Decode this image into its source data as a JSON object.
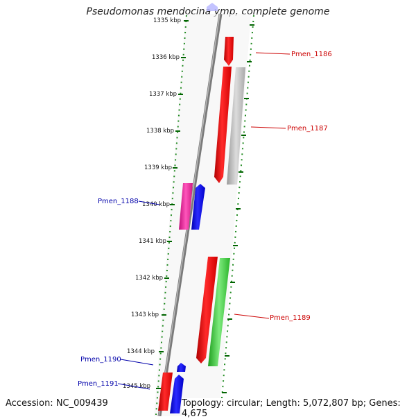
{
  "title": "Pseudomonas mendocina ymp, complete genome",
  "accession": "Accession: NC_009439",
  "topology": "Topology: circular; Length: 5,072,807 bp; Genes: 4,675",
  "ticks": [
    "1335 kbp",
    "1336 kbp",
    "1337 kbp",
    "1338 kbp",
    "1339 kbp",
    "1340 kbp",
    "1341 kbp",
    "1342 kbp",
    "1343 kbp",
    "1344 kbp",
    "1345 kbp"
  ],
  "gene_labels": {
    "pmen_1186": "Pmen_1186",
    "pmen_1187": "Pmen_1187",
    "pmen_1188": "Pmen_1188",
    "pmen_1189": "Pmen_1189",
    "pmen_1190": "Pmen_1190",
    "pmen_1191": "Pmen_1191"
  },
  "colors": {
    "forward_label": "#cc0000",
    "reverse_label": "#0000aa",
    "tick_major": "#006400",
    "tick_minor": "#228b22",
    "backbone": "#7a7a7a"
  }
}
